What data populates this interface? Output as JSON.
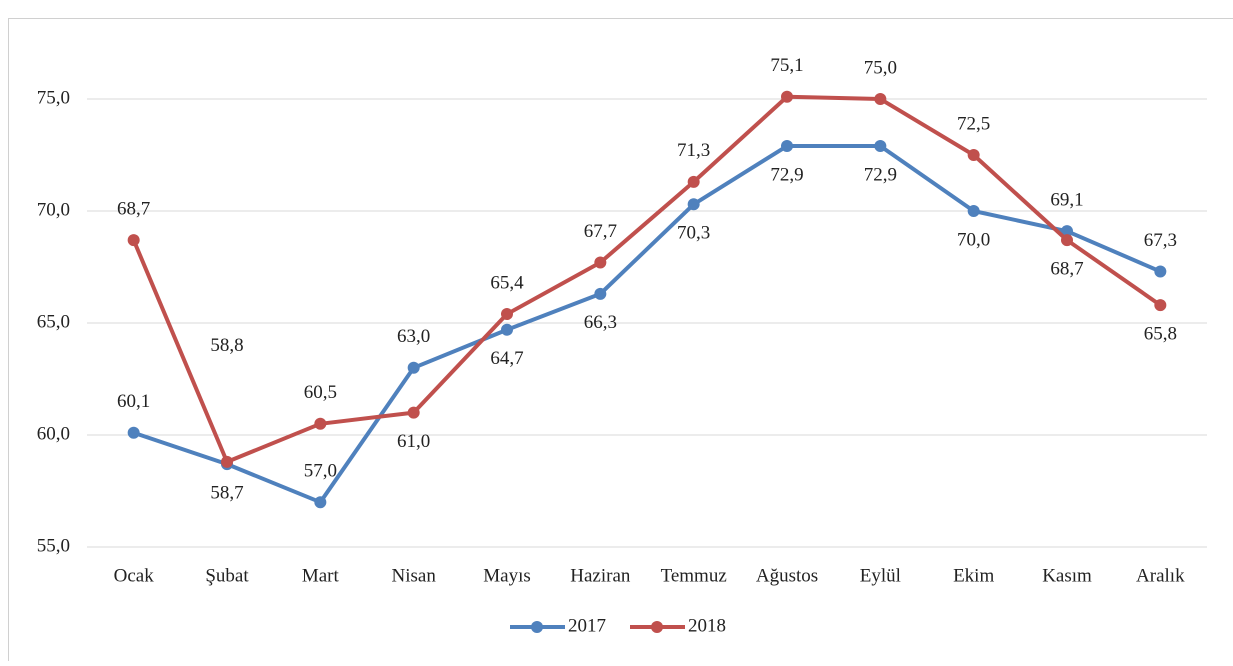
{
  "chart_data": {
    "type": "line",
    "categories": [
      "Ocak",
      "Şubat",
      "Mart",
      "Nisan",
      "Mayıs",
      "Haziran",
      "Temmuz",
      "Ağustos",
      "Eylül",
      "Ekim",
      "Kasım",
      "Aralık"
    ],
    "series": [
      {
        "name": "2017",
        "color": "#4f81bd",
        "values": [
          60.1,
          58.7,
          57.0,
          63.0,
          64.7,
          66.3,
          70.3,
          72.9,
          72.9,
          70.0,
          69.1,
          67.3
        ],
        "value_labels": [
          "60,1",
          "58,7",
          "57,0",
          "63,0",
          "64,7",
          "66,3",
          "70,3",
          "72,9",
          "72,9",
          "70,0",
          "69,1",
          "67,3"
        ]
      },
      {
        "name": "2018",
        "color": "#c0504d",
        "values": [
          68.7,
          58.8,
          60.5,
          61.0,
          65.4,
          67.7,
          71.3,
          75.1,
          75.0,
          72.5,
          68.7,
          65.8
        ],
        "value_labels": [
          "68,7",
          "58,8",
          "60,5",
          "61,0",
          "65,4",
          "67,7",
          "71,3",
          "75,1",
          "75,0",
          "72,5",
          "68,7",
          "65,8"
        ]
      }
    ],
    "ylim": [
      55,
      80
    ],
    "yticks": [
      {
        "value": 55,
        "label": "55,0"
      },
      {
        "value": 60,
        "label": "60,0"
      },
      {
        "value": 65,
        "label": "65,0"
      },
      {
        "value": 70,
        "label": "70,0"
      },
      {
        "value": 75,
        "label": "75,0"
      }
    ],
    "grid": true,
    "legend": "bottom"
  }
}
